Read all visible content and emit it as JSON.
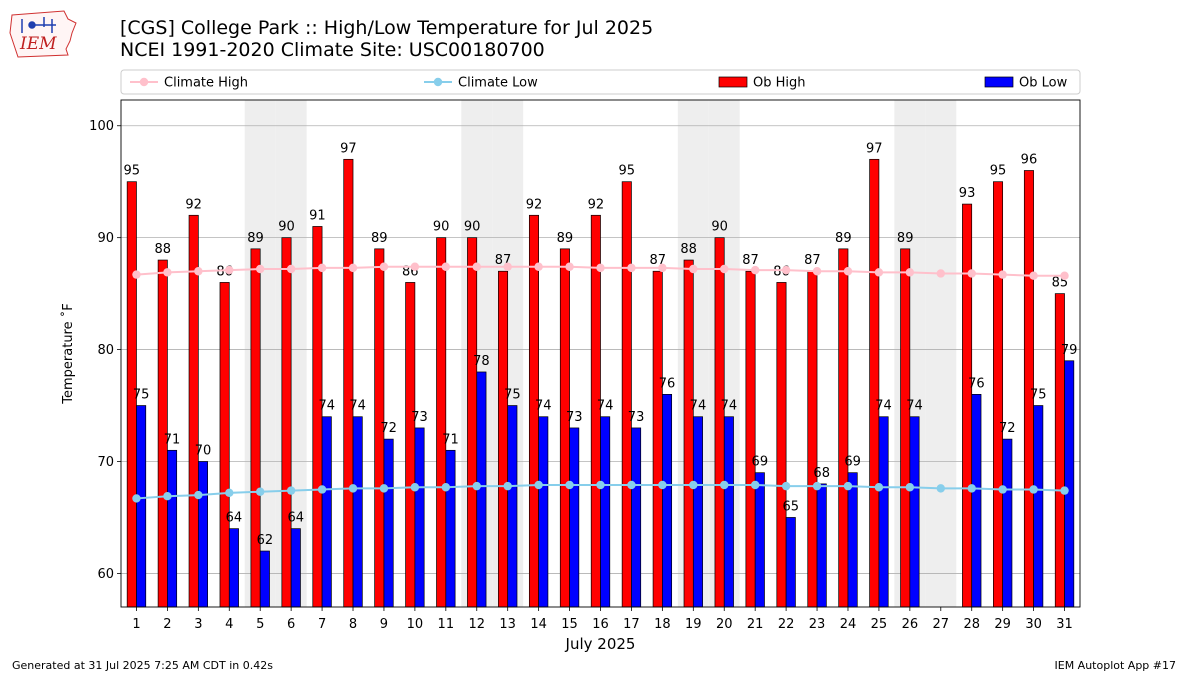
{
  "header": {
    "title_line1": "[CGS] College Park :: High/Low Temperature for Jul 2025",
    "title_line2": "NCEI 1991-2020 Climate Site: USC00180700",
    "logo_text": "IEM"
  },
  "footer": {
    "left": "Generated at 31 Jul 2025 7:25 AM CDT in 0.42s",
    "right": "IEM Autoplot App #17"
  },
  "colors": {
    "ob_high": "#ff0000",
    "ob_low": "#0000ff",
    "climate_high": "#ffc0cb",
    "climate_low": "#87ceeb",
    "weekend": "#eeeeee",
    "grid": "#b0b0b0"
  },
  "chart_data": {
    "type": "bar",
    "title": "[CGS] College Park :: High/Low Temperature for Jul 2025",
    "xlabel": "July 2025",
    "ylabel": "Temperature ˚F",
    "ylim": [
      57,
      102.3
    ],
    "yticks": [
      60,
      70,
      80,
      90,
      100
    ],
    "grid": true,
    "legend_position": "top",
    "categories": [
      "1",
      "2",
      "3",
      "4",
      "5",
      "6",
      "7",
      "8",
      "9",
      "10",
      "11",
      "12",
      "13",
      "14",
      "15",
      "16",
      "17",
      "18",
      "19",
      "20",
      "21",
      "22",
      "23",
      "24",
      "25",
      "26",
      "27",
      "28",
      "29",
      "30",
      "31"
    ],
    "weekend_days": [
      5,
      6,
      12,
      13,
      19,
      20,
      26,
      27
    ],
    "series": [
      {
        "name": "Ob High",
        "kind": "bar",
        "values": [
          95,
          88,
          92,
          86,
          89,
          90,
          91,
          97,
          89,
          86,
          90,
          90,
          87,
          92,
          89,
          92,
          95,
          87,
          88,
          90,
          87,
          86,
          87,
          89,
          97,
          89,
          null,
          93,
          95,
          96,
          85
        ],
        "labels": [
          "95",
          "88",
          "92",
          "86",
          "89",
          "90",
          "91",
          "97",
          "89",
          "86",
          "90",
          "90",
          "87",
          "92",
          "89",
          "92",
          "95",
          "87",
          "88",
          "90",
          "87",
          "86",
          "87",
          "89",
          "97",
          "89",
          "",
          "93",
          "95",
          "96",
          "85"
        ]
      },
      {
        "name": "Ob Low",
        "kind": "bar",
        "values": [
          75,
          71,
          70,
          64,
          62,
          64,
          74,
          74,
          72,
          73,
          71,
          78,
          75,
          74,
          73,
          74,
          73,
          76,
          74,
          74,
          69,
          65,
          68,
          69,
          74,
          74,
          null,
          76,
          72,
          75,
          79
        ],
        "labels": [
          "75",
          "71",
          "70",
          "64",
          "62",
          "64",
          "74",
          "74",
          "72",
          "73",
          "71",
          "78",
          "75",
          "74",
          "73",
          "74",
          "73",
          "76",
          "74",
          "74",
          "69",
          "65",
          "68",
          "69",
          "74",
          "74",
          "",
          "76",
          "72",
          "75",
          "79"
        ]
      },
      {
        "name": "Climate High",
        "kind": "line",
        "values": [
          86.7,
          86.9,
          87.0,
          87.1,
          87.2,
          87.2,
          87.3,
          87.3,
          87.4,
          87.4,
          87.4,
          87.4,
          87.4,
          87.4,
          87.4,
          87.3,
          87.3,
          87.3,
          87.2,
          87.2,
          87.1,
          87.1,
          87.0,
          87.0,
          86.9,
          86.9,
          86.8,
          86.8,
          86.7,
          86.6,
          86.6
        ]
      },
      {
        "name": "Climate Low",
        "kind": "line",
        "values": [
          66.7,
          66.9,
          67.0,
          67.2,
          67.3,
          67.4,
          67.5,
          67.6,
          67.6,
          67.7,
          67.7,
          67.8,
          67.8,
          67.9,
          67.9,
          67.9,
          67.9,
          67.9,
          67.9,
          67.9,
          67.9,
          67.8,
          67.8,
          67.8,
          67.7,
          67.7,
          67.6,
          67.6,
          67.5,
          67.5,
          67.4
        ]
      }
    ]
  }
}
